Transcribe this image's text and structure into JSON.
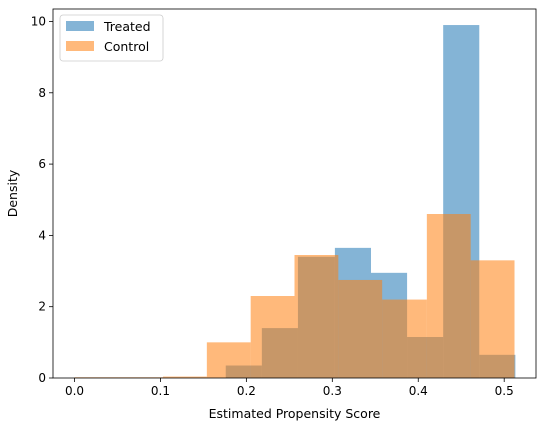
{
  "chart_data": {
    "type": "bar",
    "title": "",
    "xlabel": "Estimated Propensity Score",
    "ylabel": "Density",
    "xlim": [
      -0.025,
      0.537
    ],
    "ylim": [
      0,
      10.35
    ],
    "xticks": [
      0.0,
      0.1,
      0.2,
      0.3,
      0.4,
      0.5
    ],
    "xtick_labels": [
      "0.0",
      "0.1",
      "0.2",
      "0.3",
      "0.4",
      "0.5"
    ],
    "yticks": [
      0,
      2,
      4,
      6,
      8,
      10
    ],
    "ytick_labels": [
      "0",
      "2",
      "4",
      "6",
      "8",
      "10"
    ],
    "grid": false,
    "legend_position": "top-left",
    "series": [
      {
        "name": "Treated",
        "color": "#1f77b4",
        "opacity": 0.55,
        "bins": [
          {
            "x0": 0.0,
            "x1": 0.176,
            "value": 0.0
          },
          {
            "x0": 0.176,
            "x1": 0.218,
            "value": 0.35
          },
          {
            "x0": 0.218,
            "x1": 0.26,
            "value": 1.4
          },
          {
            "x0": 0.26,
            "x1": 0.303,
            "value": 3.4
          },
          {
            "x0": 0.303,
            "x1": 0.345,
            "value": 3.65
          },
          {
            "x0": 0.345,
            "x1": 0.387,
            "value": 2.95
          },
          {
            "x0": 0.387,
            "x1": 0.429,
            "value": 1.15
          },
          {
            "x0": 0.429,
            "x1": 0.471,
            "value": 9.9
          },
          {
            "x0": 0.471,
            "x1": 0.513,
            "value": 0.65
          }
        ]
      },
      {
        "name": "Control",
        "color": "#ff7f0e",
        "opacity": 0.55,
        "bins": [
          {
            "x0": 0.0,
            "x1": 0.051,
            "value": 0.02
          },
          {
            "x0": 0.051,
            "x1": 0.103,
            "value": 0.02
          },
          {
            "x0": 0.103,
            "x1": 0.154,
            "value": 0.04
          },
          {
            "x0": 0.154,
            "x1": 0.205,
            "value": 1.0
          },
          {
            "x0": 0.205,
            "x1": 0.256,
            "value": 2.3
          },
          {
            "x0": 0.256,
            "x1": 0.307,
            "value": 3.45
          },
          {
            "x0": 0.307,
            "x1": 0.358,
            "value": 2.75
          },
          {
            "x0": 0.358,
            "x1": 0.41,
            "value": 2.2
          },
          {
            "x0": 0.41,
            "x1": 0.461,
            "value": 4.6
          },
          {
            "x0": 0.461,
            "x1": 0.512,
            "value": 3.3
          }
        ]
      }
    ]
  }
}
